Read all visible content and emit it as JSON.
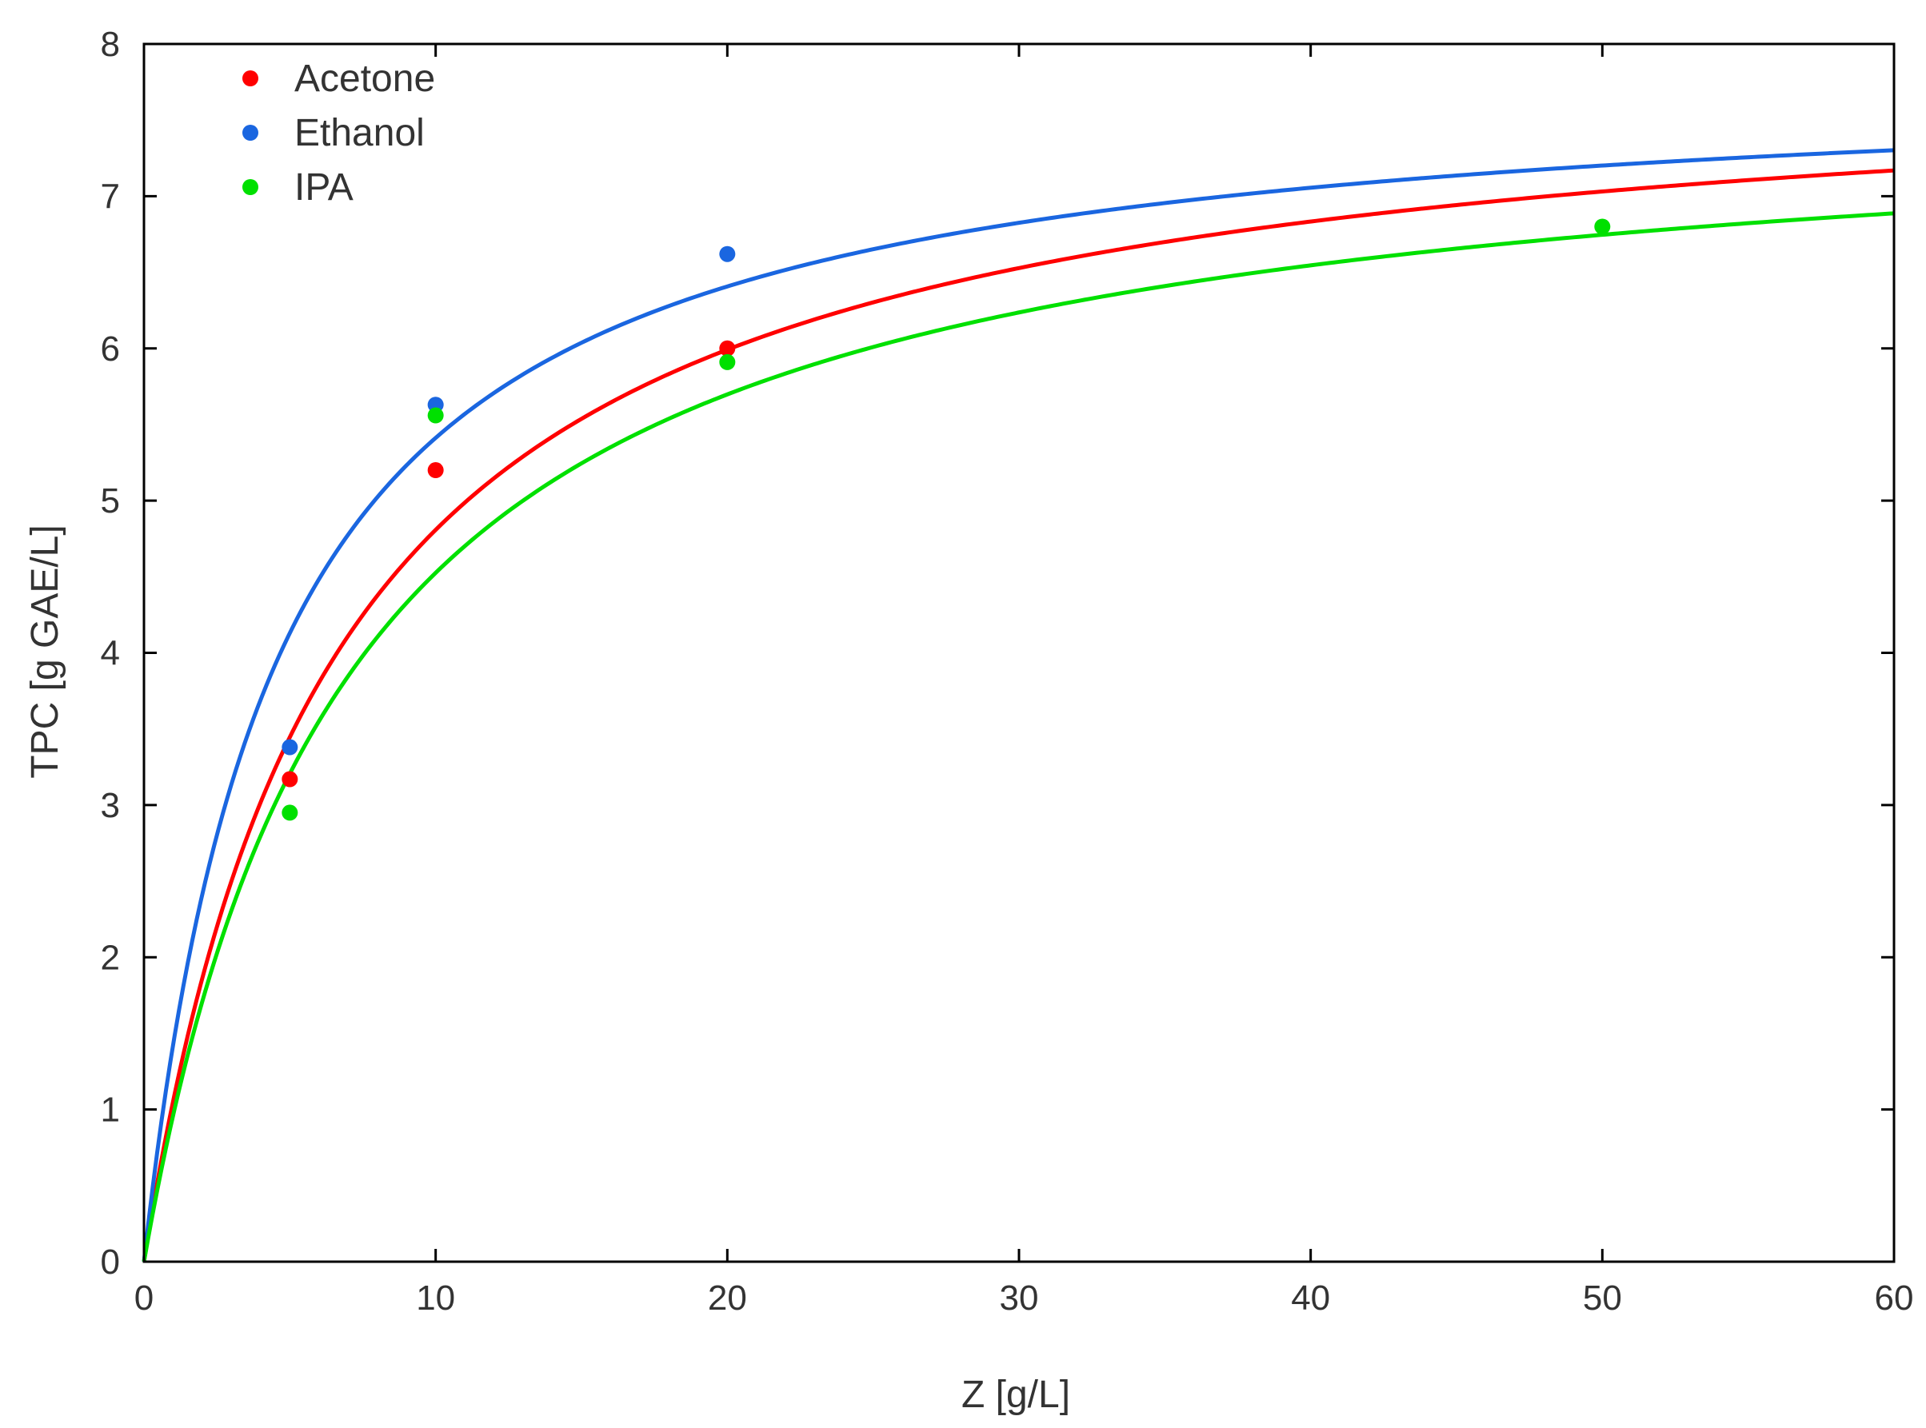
{
  "chart_data": {
    "type": "scatter",
    "title": "",
    "xlabel": "Z [g/L]",
    "ylabel": "TPC [g GAE/L]",
    "xlim": [
      0,
      60
    ],
    "ylim": [
      0,
      8
    ],
    "x_ticks": [
      0,
      10,
      20,
      30,
      40,
      50,
      60
    ],
    "y_ticks": [
      0,
      1,
      2,
      3,
      4,
      5,
      6,
      7,
      8
    ],
    "grid": false,
    "legend_position": "top-left",
    "series": [
      {
        "name": "Acetone",
        "color": "#ff0000",
        "points": [
          {
            "x": 5,
            "y": 3.17
          },
          {
            "x": 10,
            "y": 5.2
          },
          {
            "x": 20,
            "y": 6.0
          }
        ],
        "fit": {
          "model": "langmuir",
          "qmax": 7.95,
          "K": 0.153
        }
      },
      {
        "name": "Ethanol",
        "color": "#1a66e0",
        "points": [
          {
            "x": 5,
            "y": 3.38
          },
          {
            "x": 10,
            "y": 5.63
          },
          {
            "x": 20,
            "y": 6.62
          }
        ],
        "fit": {
          "model": "langmuir",
          "qmax": 7.85,
          "K": 0.222
        }
      },
      {
        "name": "IPA",
        "color": "#00e000",
        "points": [
          {
            "x": 5,
            "y": 2.95
          },
          {
            "x": 10,
            "y": 5.56
          },
          {
            "x": 20,
            "y": 5.91
          },
          {
            "x": 50,
            "y": 6.8
          }
        ],
        "fit": {
          "model": "langmuir",
          "qmax": 7.69,
          "K": 0.143
        }
      }
    ]
  }
}
